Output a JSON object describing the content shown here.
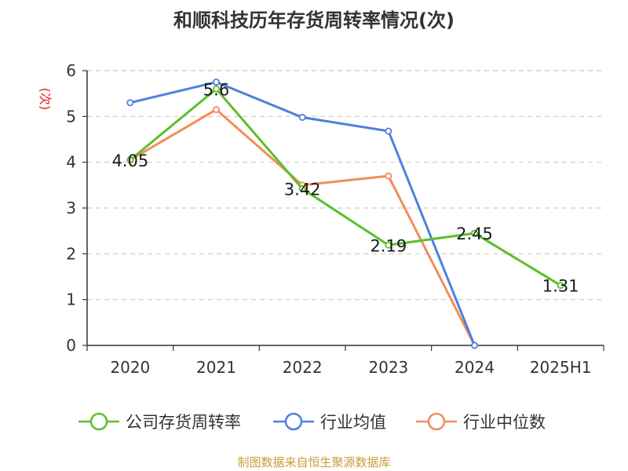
{
  "chart_data": {
    "type": "line",
    "title": "和顺科技历年存货周转率情况(次)",
    "ylabel": "(次)",
    "xlabel": "",
    "categories": [
      "2020",
      "2021",
      "2022",
      "2023",
      "2024",
      "2025H1"
    ],
    "ylim": [
      0,
      6
    ],
    "yticks": [
      0,
      1,
      2,
      3,
      4,
      5,
      6
    ],
    "grid": true,
    "legend_position": "bottom",
    "series": [
      {
        "name": "公司存货周转率",
        "color": "#5cbf2a",
        "values": [
          4.05,
          5.6,
          3.42,
          2.19,
          2.45,
          1.31
        ],
        "labels": [
          "4.05",
          "5.6",
          "3.42",
          "2.19",
          "2.45",
          "1.31"
        ]
      },
      {
        "name": "行业均值",
        "color": "#4f7fde",
        "values": [
          5.3,
          5.75,
          4.98,
          4.68,
          0,
          null
        ]
      },
      {
        "name": "行业中位数",
        "color": "#f38c5b",
        "values": [
          4.05,
          5.15,
          3.5,
          3.7,
          0,
          null
        ]
      }
    ]
  },
  "source_note": "制图数据来自恒生聚源数据库",
  "colors": {
    "ylabel": "#e02020",
    "grid": "#cccccc",
    "axis": "#333333",
    "source": "#c8a03c"
  }
}
